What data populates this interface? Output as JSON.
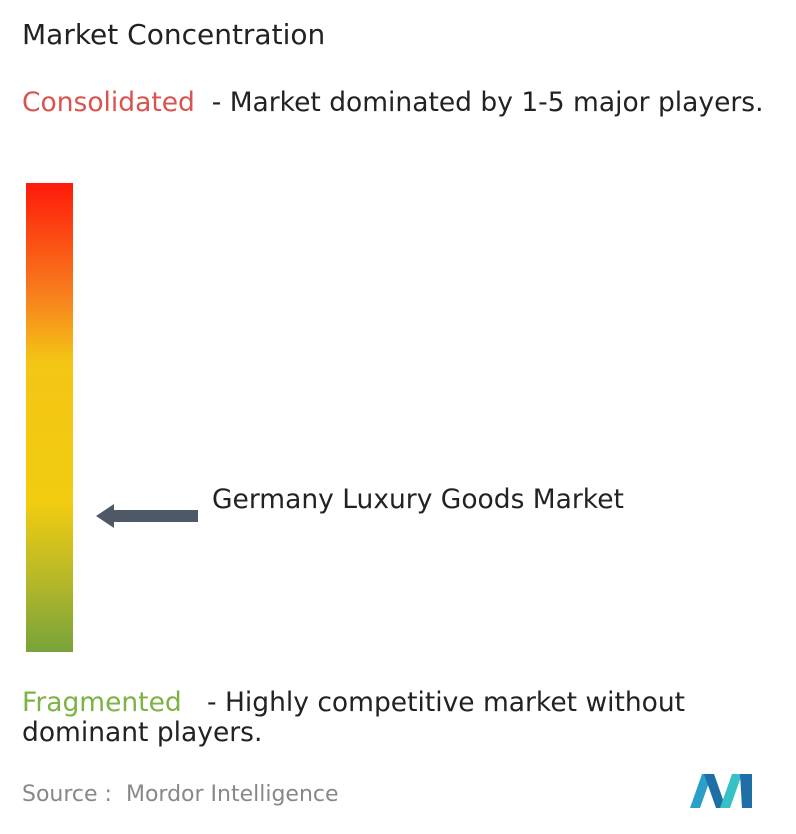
{
  "header": {
    "title": "Market Concentration"
  },
  "scale": {
    "top": {
      "label": "Consolidated",
      "description": "- Market dominated by 1-5 major players."
    },
    "bottom": {
      "label": "Fragmented",
      "description": "- Highly competitive market without dominant players."
    },
    "marker": {
      "label": "Germany Luxury Goods Market"
    }
  },
  "footer": {
    "source_label": "Source :",
    "source": "Mordor Intelligence"
  }
}
